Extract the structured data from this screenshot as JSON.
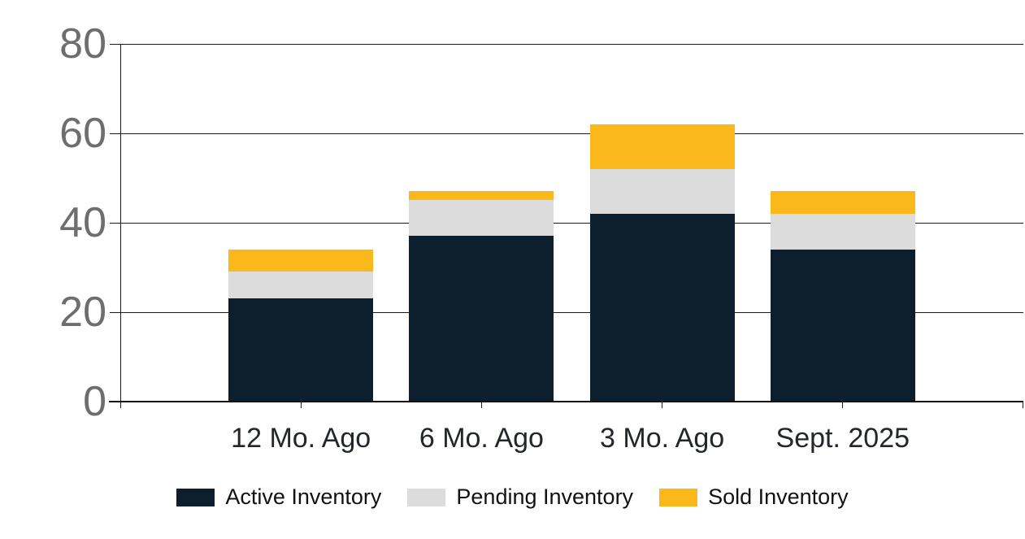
{
  "chart_data": {
    "type": "bar",
    "stacked": true,
    "title": "",
    "xlabel": "",
    "ylabel": "",
    "categories": [
      "12 Mo. Ago",
      "6 Mo. Ago",
      "3 Mo. Ago",
      "Sept. 2025"
    ],
    "series": [
      {
        "name": "Active Inventory",
        "color": "#0d1f2c",
        "values": [
          23,
          37,
          42,
          34
        ]
      },
      {
        "name": "Pending Inventory",
        "color": "#dcdcdc",
        "values": [
          6,
          8,
          10,
          8
        ]
      },
      {
        "name": "Sold Inventory",
        "color": "#fbb81a",
        "values": [
          5,
          2,
          10,
          5
        ]
      }
    ],
    "stack_totals": [
      34,
      47,
      62,
      47
    ],
    "ylim": [
      0,
      80
    ],
    "yticks": [
      0,
      20,
      40,
      60,
      80
    ],
    "grid": true,
    "legend_position": "bottom",
    "colors": {
      "axis": "#1a1a1a",
      "ytick_label": "#6e6e6e",
      "xtick_label": "#23262b",
      "legend_text": "#121212",
      "background": "#ffffff"
    }
  }
}
